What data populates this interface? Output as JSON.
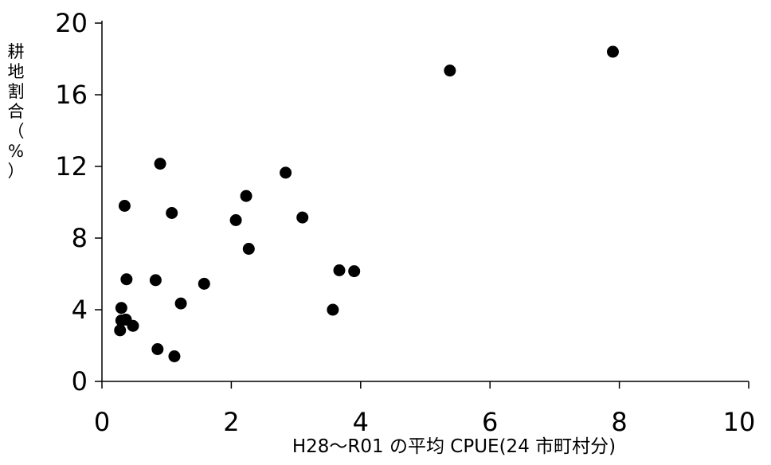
{
  "chart_data": {
    "type": "scatter",
    "title": "",
    "xlabel": "H28～R01 の平均 CPUE(24 市町村分)",
    "ylabel_chars": [
      "耕",
      "地",
      "割",
      "合",
      "（",
      "%",
      "）"
    ],
    "xlim": [
      0,
      10
    ],
    "ylim": [
      0,
      20
    ],
    "x_ticks": [
      "0",
      "2",
      "4",
      "6",
      "8",
      "10"
    ],
    "y_ticks": [
      "0",
      "4",
      "8",
      "12",
      "16",
      "20"
    ],
    "marker_color": "#000000",
    "grid": false,
    "points": [
      {
        "x": 0.28,
        "y": 2.85
      },
      {
        "x": 0.3,
        "y": 3.4
      },
      {
        "x": 0.3,
        "y": 4.1
      },
      {
        "x": 0.35,
        "y": 9.8
      },
      {
        "x": 0.37,
        "y": 3.45
      },
      {
        "x": 0.38,
        "y": 5.7
      },
      {
        "x": 0.48,
        "y": 3.1
      },
      {
        "x": 0.83,
        "y": 5.65
      },
      {
        "x": 0.86,
        "y": 1.8
      },
      {
        "x": 0.9,
        "y": 12.15
      },
      {
        "x": 1.08,
        "y": 9.4
      },
      {
        "x": 1.12,
        "y": 1.4
      },
      {
        "x": 1.22,
        "y": 4.35
      },
      {
        "x": 1.58,
        "y": 5.45
      },
      {
        "x": 2.07,
        "y": 9.0
      },
      {
        "x": 2.23,
        "y": 10.35
      },
      {
        "x": 2.27,
        "y": 7.4
      },
      {
        "x": 2.84,
        "y": 11.65
      },
      {
        "x": 3.1,
        "y": 9.15
      },
      {
        "x": 3.57,
        "y": 4.0
      },
      {
        "x": 3.67,
        "y": 6.2
      },
      {
        "x": 3.9,
        "y": 6.15
      },
      {
        "x": 5.38,
        "y": 17.35
      },
      {
        "x": 7.9,
        "y": 18.4
      }
    ]
  }
}
